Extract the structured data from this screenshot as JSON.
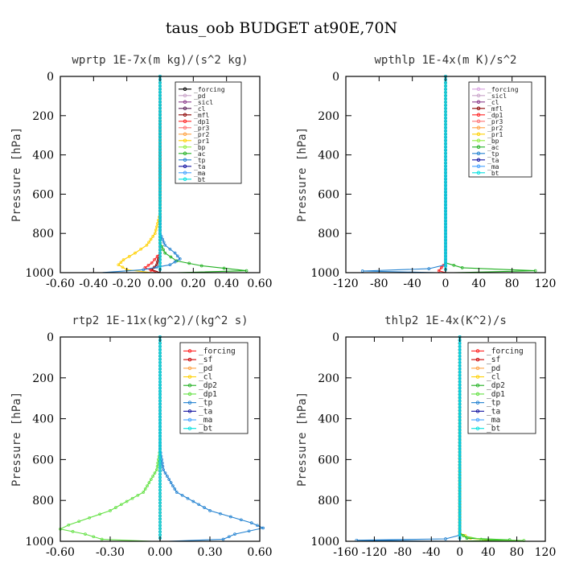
{
  "figure": {
    "title": "taus_oob  BUDGET at90E,70N"
  },
  "chart_data": [
    {
      "type": "line",
      "title": "wprtp  1E-7x(m kg)/(s^2 kg)",
      "xlabel": "",
      "ylabel": "Pressure [hPa]",
      "xlim": [
        -0.6,
        0.6
      ],
      "ylim": [
        1000,
        0
      ],
      "xticks": [
        "-0.60",
        "-0.40",
        "-0.20",
        "0.00",
        "0.20",
        "0.40",
        "0.60"
      ],
      "yticks": [
        "0",
        "200",
        "400",
        "600",
        "800",
        "1000"
      ],
      "legend_position": "top-right",
      "series": [
        {
          "name": "_forcing",
          "color": "#000000",
          "points": [
            [
              0,
              0
            ],
            [
              0,
              500
            ],
            [
              0,
              900
            ],
            [
              0,
              1000
            ]
          ]
        },
        {
          "name": "_pd",
          "color": "#c8a2c8",
          "points": [
            [
              0,
              0
            ],
            [
              0,
              1000
            ]
          ]
        },
        {
          "name": "_sicl",
          "color": "#8b3a8b",
          "points": [
            [
              0,
              0
            ],
            [
              0,
              1000
            ]
          ]
        },
        {
          "name": "_cl",
          "color": "#5a1f5a",
          "points": [
            [
              0,
              0
            ],
            [
              0,
              1000
            ]
          ]
        },
        {
          "name": "_mfl",
          "color": "#8b0000",
          "points": [
            [
              0,
              0
            ],
            [
              0,
              900
            ],
            [
              -0.02,
              960
            ],
            [
              -0.05,
              985
            ],
            [
              0,
              1000
            ]
          ]
        },
        {
          "name": "_dp1",
          "color": "#ff2020",
          "points": [
            [
              0,
              0
            ],
            [
              0,
              900
            ],
            [
              -0.05,
              950
            ],
            [
              -0.09,
              975
            ],
            [
              -0.02,
              1000
            ]
          ]
        },
        {
          "name": "_pr3",
          "color": "#ff7070",
          "points": [
            [
              0,
              0
            ],
            [
              0,
              1000
            ]
          ]
        },
        {
          "name": "_pr2",
          "color": "#ffa040",
          "points": [
            [
              0,
              0
            ],
            [
              0,
              1000
            ]
          ]
        },
        {
          "name": "_pr1",
          "color": "#ffd000",
          "points": [
            [
              0,
              0
            ],
            [
              0,
              700
            ],
            [
              -0.03,
              800
            ],
            [
              -0.08,
              860
            ],
            [
              -0.15,
              900
            ],
            [
              -0.22,
              935
            ],
            [
              -0.25,
              960
            ],
            [
              -0.2,
              985
            ],
            [
              -0.05,
              1000
            ]
          ]
        },
        {
          "name": "_bp",
          "color": "#90ee40",
          "points": [
            [
              0,
              0
            ],
            [
              0,
              1000
            ]
          ]
        },
        {
          "name": "_ac",
          "color": "#20b020",
          "points": [
            [
              0,
              0
            ],
            [
              0,
              850
            ],
            [
              0.03,
              900
            ],
            [
              0.1,
              940
            ],
            [
              0.25,
              965
            ],
            [
              0.52,
              990
            ],
            [
              0.1,
              1000
            ]
          ]
        },
        {
          "name": "_tp",
          "color": "#2080d0",
          "points": [
            [
              0,
              0
            ],
            [
              0,
              800
            ],
            [
              0.03,
              860
            ],
            [
              0.09,
              900
            ],
            [
              0.12,
              930
            ],
            [
              0.06,
              960
            ],
            [
              -0.1,
              985
            ],
            [
              -0.35,
              1000
            ]
          ]
        },
        {
          "name": "_ta",
          "color": "#1010a0",
          "points": [
            [
              0,
              0
            ],
            [
              0,
              1000
            ]
          ]
        },
        {
          "name": "_ma",
          "color": "#40a0ff",
          "points": [
            [
              0,
              0
            ],
            [
              0,
              1000
            ]
          ]
        },
        {
          "name": "_bt",
          "color": "#00e0e0",
          "points": [
            [
              0,
              0
            ],
            [
              0,
              1000
            ]
          ]
        }
      ]
    },
    {
      "type": "line",
      "title": "wpthlp  1E-4x(m K)/s^2",
      "xlabel": "",
      "ylabel": "Pressure [hPa]",
      "xlim": [
        -120,
        120
      ],
      "ylim": [
        1000,
        0
      ],
      "xticks": [
        "-120",
        "-80",
        "-40",
        "0",
        "40",
        "80",
        "120"
      ],
      "yticks": [
        "0",
        "200",
        "400",
        "600",
        "800",
        "1000"
      ],
      "legend_position": "top-right",
      "series": [
        {
          "name": "_forcing",
          "color": "#d8a0e0",
          "points": [
            [
              0,
              0
            ],
            [
              0,
              1000
            ]
          ]
        },
        {
          "name": "_sicl",
          "color": "#c8a2c8",
          "points": [
            [
              0,
              0
            ],
            [
              0,
              1000
            ]
          ]
        },
        {
          "name": "_cl",
          "color": "#8b3a8b",
          "points": [
            [
              0,
              0
            ],
            [
              0,
              1000
            ]
          ]
        },
        {
          "name": "_mfl",
          "color": "#8b0000",
          "points": [
            [
              0,
              0
            ],
            [
              0,
              1000
            ]
          ]
        },
        {
          "name": "_dp1",
          "color": "#ff2020",
          "points": [
            [
              0,
              0
            ],
            [
              0,
              950
            ],
            [
              -5,
              975
            ],
            [
              -8,
              990
            ],
            [
              0,
              1000
            ]
          ]
        },
        {
          "name": "_pr3",
          "color": "#ff7070",
          "points": [
            [
              0,
              0
            ],
            [
              0,
              1000
            ]
          ]
        },
        {
          "name": "_pr2",
          "color": "#ffa040",
          "points": [
            [
              0,
              0
            ],
            [
              0,
              1000
            ]
          ]
        },
        {
          "name": "_pr1",
          "color": "#ffd000",
          "points": [
            [
              0,
              0
            ],
            [
              0,
              1000
            ]
          ]
        },
        {
          "name": "_bp",
          "color": "#90ee40",
          "points": [
            [
              0,
              0
            ],
            [
              0,
              1000
            ]
          ]
        },
        {
          "name": "_ac",
          "color": "#20b020",
          "points": [
            [
              0,
              0
            ],
            [
              0,
              950
            ],
            [
              20,
              975
            ],
            [
              108,
              990
            ],
            [
              10,
              1000
            ]
          ]
        },
        {
          "name": "_tp",
          "color": "#2080d0",
          "points": [
            [
              0,
              0
            ],
            [
              0,
              960
            ],
            [
              -20,
              980
            ],
            [
              -100,
              992
            ],
            [
              -10,
              1000
            ]
          ]
        },
        {
          "name": "_ta",
          "color": "#1010a0",
          "points": [
            [
              0,
              0
            ],
            [
              0,
              1000
            ]
          ]
        },
        {
          "name": "_ma",
          "color": "#40a0ff",
          "points": [
            [
              0,
              0
            ],
            [
              0,
              1000
            ]
          ]
        },
        {
          "name": "_bt",
          "color": "#00e0e0",
          "points": [
            [
              0,
              0
            ],
            [
              0,
              1000
            ]
          ]
        }
      ]
    },
    {
      "type": "line",
      "title": "rtp2  1E-11x(kg^2)/(kg^2 s)",
      "xlabel": "",
      "ylabel": "Pressure [hPa]",
      "xlim": [
        -0.6,
        0.6
      ],
      "ylim": [
        1000,
        0
      ],
      "xticks": [
        "-0.60",
        "-0.30",
        "0.00",
        "0.30",
        "0.60"
      ],
      "yticks": [
        "0",
        "200",
        "400",
        "600",
        "800",
        "1000"
      ],
      "legend_position": "top-right",
      "series": [
        {
          "name": "_forcing",
          "color": "#ff2020",
          "points": [
            [
              0,
              0
            ],
            [
              0,
              1000
            ]
          ]
        },
        {
          "name": "_sf",
          "color": "#cc0000",
          "points": [
            [
              0,
              0
            ],
            [
              0,
              1000
            ]
          ]
        },
        {
          "name": "_pd",
          "color": "#ffa040",
          "points": [
            [
              0,
              0
            ],
            [
              0,
              1000
            ]
          ]
        },
        {
          "name": "_cl",
          "color": "#ffd000",
          "points": [
            [
              0,
              0
            ],
            [
              0,
              1000
            ]
          ]
        },
        {
          "name": "_dp2",
          "color": "#20b020",
          "points": [
            [
              0,
              0
            ],
            [
              0,
              1000
            ]
          ]
        },
        {
          "name": "_dp1",
          "color": "#60e040",
          "points": [
            [
              0,
              0
            ],
            [
              0,
              550
            ],
            [
              -0.02,
              650
            ],
            [
              -0.1,
              760
            ],
            [
              -0.3,
              850
            ],
            [
              -0.55,
              920
            ],
            [
              -0.6,
              940
            ],
            [
              -0.45,
              965
            ],
            [
              -0.35,
              990
            ],
            [
              -0.05,
              1000
            ]
          ]
        },
        {
          "name": "_tp",
          "color": "#2080d0",
          "points": [
            [
              0,
              0
            ],
            [
              0,
              550
            ],
            [
              0.02,
              650
            ],
            [
              0.1,
              760
            ],
            [
              0.3,
              850
            ],
            [
              0.55,
              910
            ],
            [
              0.62,
              935
            ],
            [
              0.45,
              965
            ],
            [
              0.38,
              990
            ],
            [
              0.05,
              1000
            ]
          ]
        },
        {
          "name": "_ta",
          "color": "#1010a0",
          "points": [
            [
              0,
              0
            ],
            [
              0,
              1000
            ]
          ]
        },
        {
          "name": "_ma",
          "color": "#40a0ff",
          "points": [
            [
              0,
              0
            ],
            [
              0,
              1000
            ]
          ]
        },
        {
          "name": "_bt",
          "color": "#00e0e0",
          "points": [
            [
              0,
              0
            ],
            [
              0,
              1000
            ]
          ]
        }
      ]
    },
    {
      "type": "line",
      "title": "thlp2  1E-4x(K^2)/s",
      "xlabel": "",
      "ylabel": "Pressure [hPa]",
      "xlim": [
        -160,
        120
      ],
      "ylim": [
        1000,
        0
      ],
      "xticks": [
        "-160",
        "-120",
        "-80",
        "-40",
        "0",
        "40",
        "80",
        "120"
      ],
      "yticks": [
        "0",
        "200",
        "400",
        "600",
        "800",
        "1000"
      ],
      "legend_position": "top-right",
      "series": [
        {
          "name": "_forcing",
          "color": "#ff2020",
          "points": [
            [
              0,
              0
            ],
            [
              0,
              1000
            ]
          ]
        },
        {
          "name": "_sf",
          "color": "#cc0000",
          "points": [
            [
              0,
              0
            ],
            [
              0,
              1000
            ]
          ]
        },
        {
          "name": "_pd",
          "color": "#ffa040",
          "points": [
            [
              0,
              0
            ],
            [
              0,
              1000
            ]
          ]
        },
        {
          "name": "_cl",
          "color": "#ffd000",
          "points": [
            [
              0,
              0
            ],
            [
              0,
              960
            ],
            [
              15,
              985
            ],
            [
              45,
              995
            ],
            [
              0,
              1000
            ]
          ]
        },
        {
          "name": "_dp2",
          "color": "#20b020",
          "points": [
            [
              0,
              0
            ],
            [
              0,
              960
            ],
            [
              10,
              985
            ],
            [
              70,
              993
            ],
            [
              0,
              1000
            ]
          ]
        },
        {
          "name": "_dp1",
          "color": "#60e040",
          "points": [
            [
              0,
              0
            ],
            [
              0,
              970
            ],
            [
              30,
              990
            ],
            [
              90,
              996
            ],
            [
              0,
              1000
            ]
          ]
        },
        {
          "name": "_tp",
          "color": "#2080d0",
          "points": [
            [
              0,
              0
            ],
            [
              0,
              970
            ],
            [
              -20,
              988
            ],
            [
              -145,
              995
            ],
            [
              -10,
              1000
            ]
          ]
        },
        {
          "name": "_ta",
          "color": "#1010a0",
          "points": [
            [
              0,
              0
            ],
            [
              0,
              1000
            ]
          ]
        },
        {
          "name": "_ma",
          "color": "#40a0ff",
          "points": [
            [
              0,
              0
            ],
            [
              0,
              1000
            ]
          ]
        },
        {
          "name": "_bt",
          "color": "#00e0e0",
          "points": [
            [
              0,
              0
            ],
            [
              0,
              1000
            ]
          ]
        }
      ]
    }
  ]
}
